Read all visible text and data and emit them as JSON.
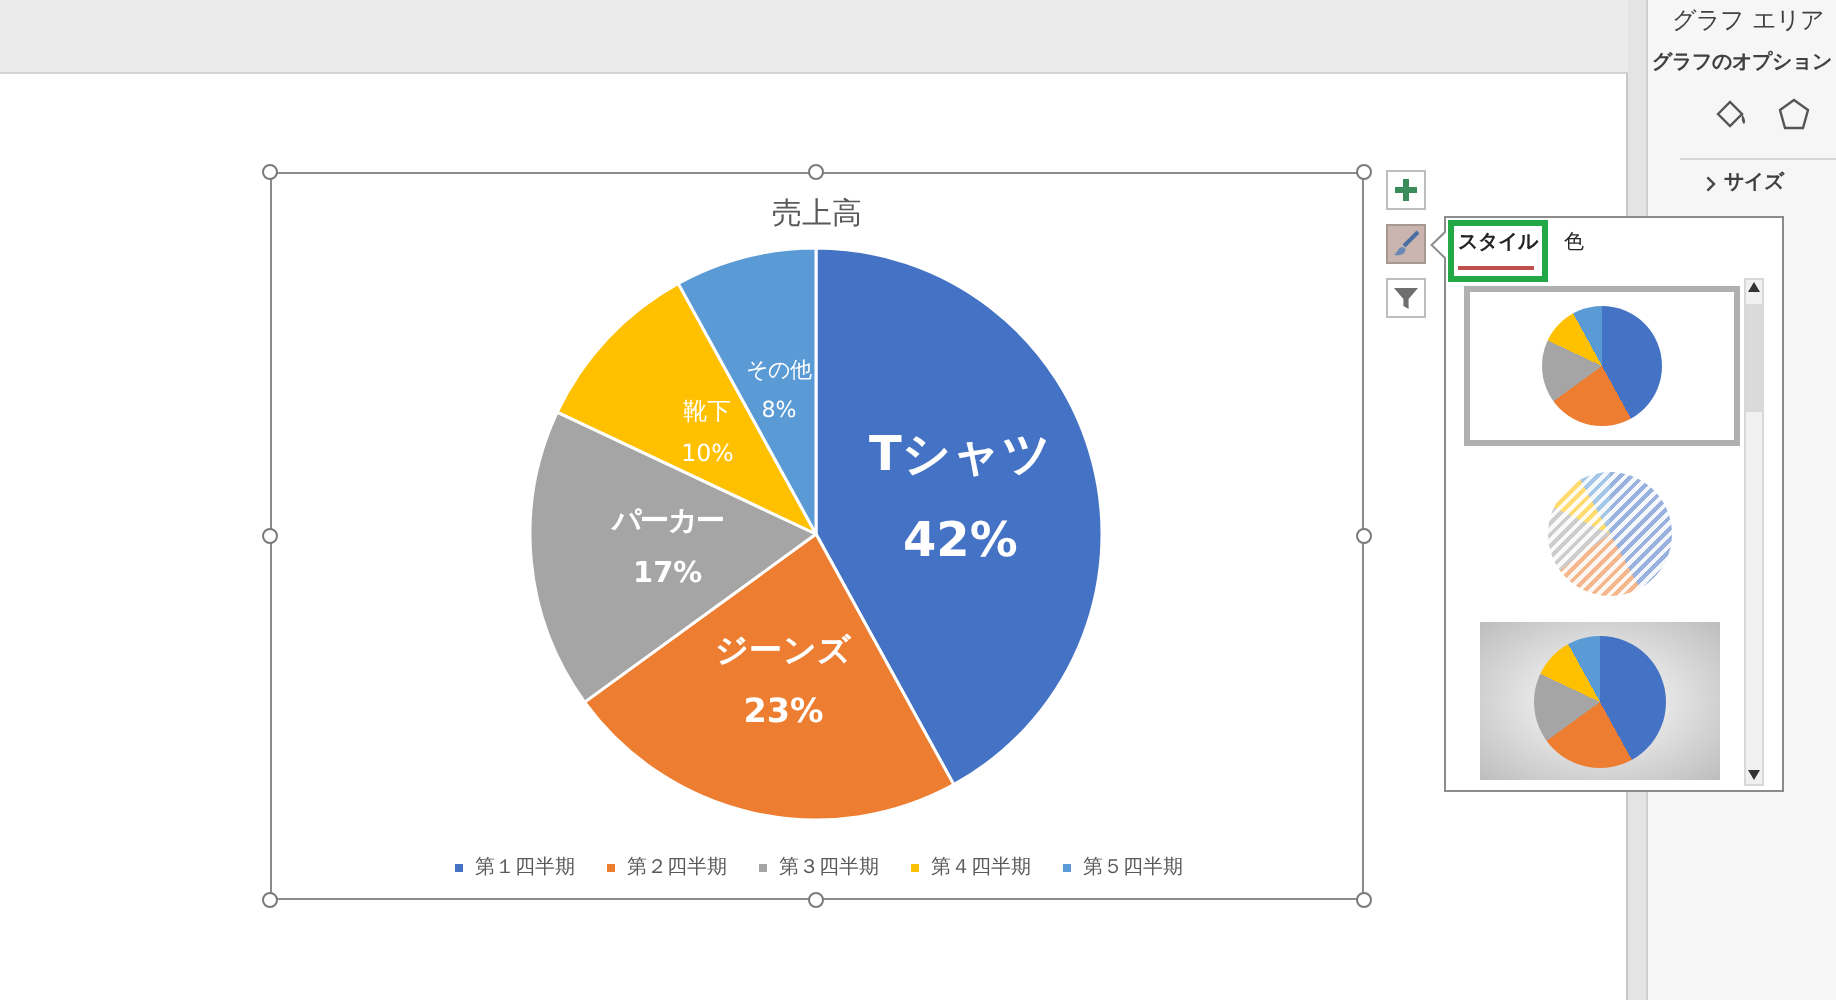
{
  "chart_data": {
    "type": "pie",
    "title": "売上高",
    "categories": [
      "第１四半期",
      "第２四半期",
      "第３四半期",
      "第４四半期",
      "第５四半期"
    ],
    "values": [
      42,
      23,
      17,
      10,
      8
    ],
    "colors": [
      "#4472c4",
      "#ed7d31",
      "#a5a5a5",
      "#ffc000",
      "#5b9bd5"
    ],
    "value_labels": [
      "Tシャツ\n42%",
      "ジーンズ\n23%",
      "パーカー\n17%",
      "靴下\n10%",
      "その他\n8%"
    ],
    "legend": "bottom",
    "annotations": [
      "グラフ エリア",
      "グラフのオプション",
      "サイズ",
      "スタイル",
      "色"
    ]
  }
}
